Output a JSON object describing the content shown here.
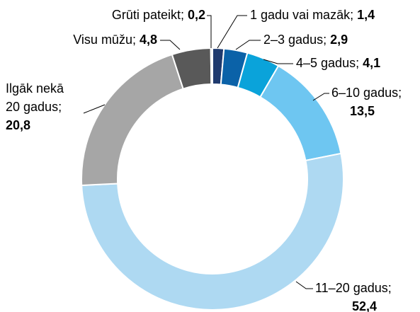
{
  "chart_data": {
    "type": "donut",
    "categories": [
      "1 gadu vai mazāk;",
      "2–3 gadus;",
      "4–5 gadus;",
      "6–10 gadus;",
      "11–20 gadus;",
      "Ilgāk nekā 20 gadus;",
      "Visu mūžu;",
      "Grūti pateikt;"
    ],
    "values": [
      1.4,
      2.9,
      4.1,
      13.5,
      52.4,
      20.8,
      4.8,
      0.2
    ],
    "value_labels": [
      "1,4",
      "2,9",
      "4,1",
      "13,5",
      "52,4",
      "20,8",
      "4,8",
      "0,2"
    ],
    "colors": [
      "#1f3a6e",
      "#0b62a8",
      "#0aa3da",
      "#6ec6f1",
      "#aed9f2",
      "#a6a6a6",
      "#595959",
      "#c8c8c8"
    ]
  }
}
